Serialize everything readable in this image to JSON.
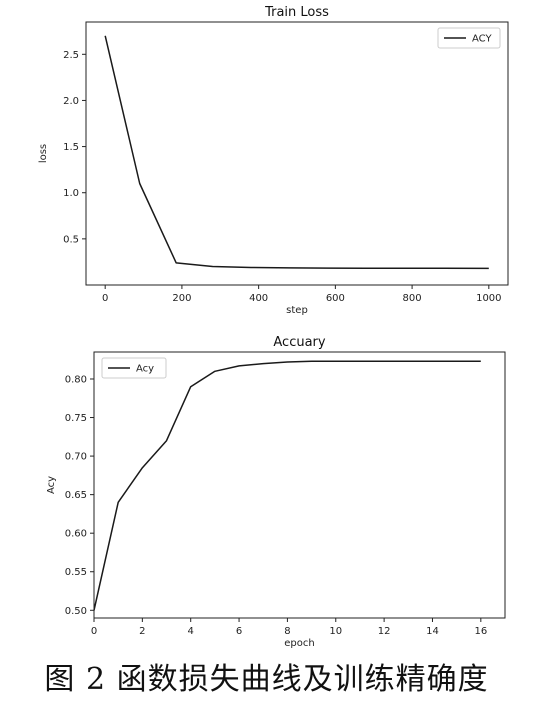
{
  "caption": "图 2 函数损失曲线及训练精确度",
  "chart_data": [
    {
      "type": "line",
      "title": "Train Loss",
      "xlabel": "step",
      "ylabel": "loss",
      "xlim": [
        -50,
        1050
      ],
      "ylim": [
        0.0,
        2.85
      ],
      "xticks": [
        0,
        200,
        400,
        600,
        800,
        1000
      ],
      "xtick_labels": [
        "0",
        "200",
        "400",
        "600",
        "800",
        "1000"
      ],
      "yticks": [
        0.5,
        1.0,
        1.5,
        2.0,
        2.5
      ],
      "ytick_labels": [
        "0.5",
        "1.0",
        "1.5",
        "2.0",
        "2.5"
      ],
      "grid": false,
      "legend": "upper right",
      "series": [
        {
          "name": "ACY",
          "color": "#1a1a1a",
          "x": [
            0,
            90,
            185,
            280,
            380,
            480,
            580,
            680,
            780,
            880,
            1000
          ],
          "y": [
            2.7,
            1.1,
            0.24,
            0.2,
            0.19,
            0.185,
            0.183,
            0.182,
            0.181,
            0.181,
            0.18
          ]
        }
      ]
    },
    {
      "type": "line",
      "title": "Accuary",
      "xlabel": "epoch",
      "ylabel": "Acy",
      "xlim": [
        0,
        17
      ],
      "ylim": [
        0.49,
        0.835
      ],
      "xticks": [
        0,
        2,
        4,
        6,
        8,
        10,
        12,
        14,
        16
      ],
      "xtick_labels": [
        "0",
        "2",
        "4",
        "6",
        "8",
        "10",
        "12",
        "14",
        "16"
      ],
      "yticks": [
        0.5,
        0.55,
        0.6,
        0.65,
        0.7,
        0.75,
        0.8
      ],
      "ytick_labels": [
        "0.50",
        "0.55",
        "0.60",
        "0.65",
        "0.70",
        "0.75",
        "0.80"
      ],
      "grid": false,
      "legend": "upper left",
      "series": [
        {
          "name": "Acy",
          "color": "#1a1a1a",
          "x": [
            0,
            1,
            2,
            3,
            4,
            5,
            6,
            7,
            8,
            9,
            10,
            11,
            12,
            13,
            14,
            15,
            16
          ],
          "y": [
            0.5,
            0.64,
            0.685,
            0.72,
            0.79,
            0.81,
            0.817,
            0.82,
            0.822,
            0.823,
            0.823,
            0.823,
            0.823,
            0.823,
            0.823,
            0.823,
            0.823
          ]
        }
      ]
    }
  ]
}
